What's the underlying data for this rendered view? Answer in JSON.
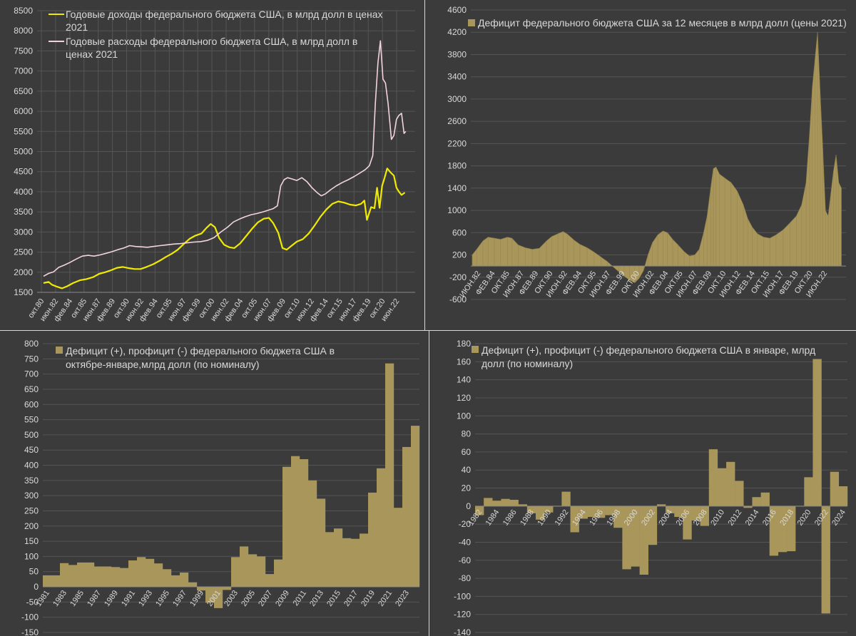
{
  "colors": {
    "revenue": "#f0ea00",
    "spending": "#f3d4dc",
    "bar": "#a9965a",
    "bar_dark": "#8f7e47"
  },
  "chart_data": [
    {
      "id": "p1",
      "type": "line",
      "legend": [
        "Годовые доходы федерального бюджета США, в млрд долл в ценах 2021",
        "Годовые расходы федерального бюджета США, в млрд долл в ценах 2021"
      ],
      "ylim": [
        1500,
        8500
      ],
      "yticks": [
        1500,
        2000,
        2500,
        3000,
        3500,
        4000,
        4500,
        5000,
        5500,
        6000,
        6500,
        7000,
        7500,
        8000,
        8500
      ],
      "xlim": [
        1980.75,
        2024.0
      ],
      "xtick_labels": [
        "окт.80",
        "июн.82",
        "фев.84",
        "окт.85",
        "июн.87",
        "фев.89",
        "окт.90",
        "июн.92",
        "фев.94",
        "окт.95",
        "июн.97",
        "фев.99",
        "окт.00",
        "июн.02",
        "фев.04",
        "окт.05",
        "июн.07",
        "фев.09",
        "окт.10",
        "июн.12",
        "фев.14",
        "окт.15",
        "июн.17",
        "фев.19",
        "окт.20",
        "июн.22"
      ],
      "series": [
        {
          "name": "revenue",
          "x": [
            1981.0,
            1981.6,
            1982.0,
            1982.6,
            1983.2,
            1983.8,
            1984.5,
            1985.3,
            1986.1,
            1986.9,
            1987.6,
            1988.3,
            1989.0,
            1989.7,
            1990.4,
            1991.1,
            1991.8,
            1992.5,
            1993.2,
            1994.0,
            1994.8,
            1995.5,
            1996.2,
            1996.9,
            1997.6,
            1998.3,
            1999.0,
            1999.7,
            2000.3,
            2000.8,
            2001.3,
            2001.8,
            2002.4,
            2003.0,
            2003.6,
            2004.3,
            2005.0,
            2005.7,
            2006.4,
            2007.1,
            2007.7,
            2008.2,
            2008.8,
            2009.3,
            2009.8,
            2010.4,
            2011.0,
            2011.7,
            2012.4,
            2013.1,
            2013.8,
            2014.5,
            2015.2,
            2015.9,
            2016.6,
            2017.3,
            2018.0,
            2018.6,
            2019.0,
            2019.3,
            2019.8,
            2020.2,
            2020.5,
            2020.8,
            2021.1,
            2021.4,
            2021.7,
            2022.1,
            2022.5,
            2022.8,
            2023.1,
            2023.4,
            2023.8
          ],
          "values": [
            1730,
            1760,
            1690,
            1640,
            1600,
            1650,
            1730,
            1800,
            1830,
            1880,
            1960,
            2000,
            2050,
            2110,
            2130,
            2100,
            2080,
            2080,
            2130,
            2200,
            2290,
            2380,
            2460,
            2560,
            2700,
            2830,
            2910,
            2960,
            3100,
            3200,
            3120,
            2850,
            2680,
            2620,
            2600,
            2720,
            2900,
            3080,
            3240,
            3330,
            3350,
            3220,
            2980,
            2600,
            2560,
            2660,
            2760,
            2820,
            2960,
            3160,
            3380,
            3560,
            3700,
            3760,
            3730,
            3680,
            3660,
            3700,
            3780,
            3300,
            3620,
            3590,
            4100,
            3600,
            4150,
            4350,
            4580,
            4480,
            4400,
            4100,
            4000,
            3920,
            3980
          ]
        },
        {
          "name": "spending",
          "x": [
            1981.0,
            1981.6,
            1982.2,
            1982.8,
            1983.5,
            1984.2,
            1984.9,
            1985.6,
            1986.3,
            1987.0,
            1987.7,
            1988.4,
            1989.1,
            1989.8,
            1990.5,
            1991.2,
            1991.9,
            1992.6,
            1993.3,
            1994.0,
            1994.8,
            1995.6,
            1996.4,
            1997.2,
            1998.0,
            1998.8,
            1999.6,
            2000.4,
            2001.2,
            2002.0,
            2002.8,
            2003.5,
            2004.2,
            2004.9,
            2005.6,
            2006.3,
            2007.0,
            2007.6,
            2008.2,
            2008.7,
            2009.1,
            2009.5,
            2009.9,
            2010.4,
            2011.0,
            2011.6,
            2012.2,
            2012.8,
            2013.4,
            2013.9,
            2014.4,
            2015.0,
            2015.7,
            2016.4,
            2017.1,
            2017.8,
            2018.5,
            2019.1,
            2019.6,
            2020.0,
            2020.3,
            2020.6,
            2020.9,
            2021.2,
            2021.5,
            2021.8,
            2022.2,
            2022.5,
            2022.8,
            2023.1,
            2023.4,
            2023.7,
            2023.9
          ],
          "values": [
            1900,
            1970,
            2010,
            2120,
            2180,
            2250,
            2330,
            2400,
            2420,
            2400,
            2430,
            2470,
            2510,
            2560,
            2600,
            2660,
            2640,
            2630,
            2620,
            2640,
            2660,
            2680,
            2700,
            2710,
            2730,
            2750,
            2760,
            2790,
            2860,
            3000,
            3120,
            3250,
            3320,
            3380,
            3430,
            3460,
            3500,
            3540,
            3580,
            3650,
            4150,
            4300,
            4350,
            4320,
            4280,
            4350,
            4250,
            4100,
            3980,
            3900,
            3950,
            4050,
            4150,
            4230,
            4300,
            4380,
            4470,
            4550,
            4650,
            4900,
            6200,
            7200,
            7750,
            6800,
            6700,
            6200,
            5300,
            5400,
            5800,
            5900,
            5950,
            5450,
            5500
          ]
        }
      ]
    },
    {
      "id": "p2",
      "type": "bar",
      "legend": [
        "Дефицит федерального бюджета США за 12 месяцев в млрд долл (цены 2021)"
      ],
      "ylim": [
        -600,
        4600
      ],
      "yticks": [
        -600,
        -200,
        200,
        600,
        1000,
        1400,
        1800,
        2200,
        2600,
        3000,
        3400,
        3800,
        4200,
        4600
      ],
      "xlim": [
        1982.0,
        2024.0
      ],
      "xtick_labels": [
        "ИЮН.82",
        "ФЕВ.84",
        "ОКТ.85",
        "ИЮН.87",
        "ФЕВ.89",
        "ОКТ.90",
        "ИЮН.92",
        "ФЕВ.94",
        "ОКТ.95",
        "ИЮН.97",
        "ФЕВ.99",
        "ОКТ.00",
        "ИЮН.02",
        "ФЕВ.04",
        "ОКТ.05",
        "ИЮН.07",
        "ФЕВ.09",
        "ОКТ.10",
        "ИЮН.12",
        "ФЕВ.14",
        "ОКТ.15",
        "ИЮН.17",
        "ФЕВ.19",
        "ОКТ.20",
        "ИЮН.22"
      ],
      "series": [
        {
          "name": "deficit",
          "x": [
            1982.0,
            1982.5,
            1983.2,
            1983.8,
            1984.5,
            1985.2,
            1986.0,
            1986.5,
            1987.2,
            1988.0,
            1988.8,
            1989.6,
            1990.4,
            1991.0,
            1991.7,
            1992.3,
            1992.8,
            1993.5,
            1994.2,
            1995.0,
            1995.8,
            1996.6,
            1997.3,
            1998.0,
            1998.6,
            1999.2,
            1999.8,
            2000.4,
            2000.9,
            2001.4,
            2001.9,
            2002.4,
            2003.0,
            2003.6,
            2004.1,
            2004.7,
            2005.3,
            2006.0,
            2006.6,
            2007.2,
            2007.7,
            2008.2,
            2008.6,
            2009.0,
            2009.3,
            2009.6,
            2010.0,
            2010.6,
            2011.3,
            2012.0,
            2012.7,
            2013.2,
            2013.7,
            2014.3,
            2015.0,
            2015.7,
            2016.4,
            2017.2,
            2018.0,
            2018.7,
            2019.3,
            2019.8,
            2020.2,
            2020.5,
            2020.8,
            2021.1,
            2021.4,
            2021.7,
            2022.0,
            2022.3,
            2022.6,
            2022.9,
            2023.2,
            2023.5,
            2023.8
          ],
          "values": [
            200,
            300,
            450,
            520,
            500,
            480,
            520,
            500,
            380,
            330,
            300,
            320,
            450,
            530,
            580,
            620,
            570,
            470,
            390,
            330,
            250,
            160,
            80,
            -20,
            -100,
            -180,
            -250,
            -300,
            -220,
            -80,
            200,
            420,
            560,
            630,
            600,
            480,
            380,
            260,
            180,
            200,
            300,
            600,
            900,
            1400,
            1750,
            1780,
            1650,
            1580,
            1500,
            1350,
            1100,
            850,
            700,
            580,
            520,
            500,
            560,
            650,
            780,
            900,
            1100,
            1500,
            2400,
            3200,
            3700,
            4200,
            3100,
            2100,
            1000,
            900,
            1300,
            1700,
            2000,
            1500,
            1400
          ]
        }
      ]
    },
    {
      "id": "p3",
      "type": "bar",
      "legend": [
        "Дефицит (+), профицит (-) федерального бюджета США в октябре-январе,млрд долл (по номиналу)"
      ],
      "ylim": [
        -150,
        800
      ],
      "yticks": [
        -150,
        -100,
        -50,
        0,
        50,
        100,
        150,
        200,
        250,
        300,
        350,
        400,
        450,
        500,
        550,
        600,
        650,
        700,
        750,
        800
      ],
      "categories": [
        "1981",
        "1982",
        "1983",
        "1984",
        "1985",
        "1986",
        "1987",
        "1988",
        "1989",
        "1990",
        "1991",
        "1992",
        "1993",
        "1994",
        "1995",
        "1996",
        "1997",
        "1998",
        "1999",
        "2000",
        "2001",
        "2002",
        "2003",
        "2004",
        "2005",
        "2006",
        "2007",
        "2008",
        "2009",
        "2010",
        "2011",
        "2012",
        "2013",
        "2014",
        "2015",
        "2016",
        "2017",
        "2018",
        "2019",
        "2020",
        "2021",
        "2022",
        "2023",
        "2024"
      ],
      "xtick_labels": [
        "1981",
        "1983",
        "1985",
        "1987",
        "1989",
        "1991",
        "1993",
        "1995",
        "1997",
        "1999",
        "2001",
        "2003",
        "2005",
        "2007",
        "2009",
        "2011",
        "2013",
        "2015",
        "2017",
        "2019",
        "2021",
        "2023"
      ],
      "values": [
        38,
        38,
        78,
        72,
        80,
        80,
        67,
        67,
        65,
        62,
        87,
        98,
        92,
        77,
        58,
        38,
        47,
        15,
        -12,
        -52,
        -70,
        -10,
        98,
        133,
        107,
        100,
        42,
        90,
        395,
        430,
        420,
        350,
        290,
        180,
        192,
        160,
        158,
        175,
        310,
        390,
        735,
        260,
        460,
        530
      ]
    },
    {
      "id": "p4",
      "type": "bar",
      "legend": [
        "Дефицит (+), профицит (-) федерального бюджета США в январе, млрд долл (по номиналу)"
      ],
      "ylim": [
        -140,
        180
      ],
      "yticks": [
        -140,
        -120,
        -100,
        -80,
        -60,
        -40,
        -20,
        0,
        20,
        40,
        60,
        80,
        100,
        120,
        140,
        160,
        180
      ],
      "categories": [
        "1982",
        "1983",
        "1984",
        "1985",
        "1986",
        "1987",
        "1988",
        "1989",
        "1990",
        "1991",
        "1992",
        "1993",
        "1994",
        "1995",
        "1996",
        "1997",
        "1998",
        "1999",
        "2000",
        "2001",
        "2002",
        "2003",
        "2004",
        "2005",
        "2006",
        "2007",
        "2008",
        "2009",
        "2010",
        "2011",
        "2012",
        "2013",
        "2014",
        "2015",
        "2016",
        "2017",
        "2018",
        "2019",
        "2020",
        "2021",
        "2022",
        "2023",
        "2024"
      ],
      "xtick_labels": [
        "1982",
        "1984",
        "1986",
        "1988",
        "1990",
        "1992",
        "1994",
        "1996",
        "1998",
        "2000",
        "2002",
        "2004",
        "2006",
        "2008",
        "2010",
        "2012",
        "2014",
        "2016",
        "2018",
        "2020",
        "2022",
        "2024"
      ],
      "values": [
        -10,
        9,
        6,
        8,
        7,
        2,
        -8,
        -15,
        -7,
        0,
        16,
        -29,
        -14,
        -12,
        -13,
        -10,
        -24,
        -70,
        -67,
        -76,
        -43,
        2,
        -8,
        -12,
        -37,
        -16,
        -22,
        63,
        42,
        49,
        28,
        -2,
        10,
        15,
        -55,
        -51,
        -50,
        0,
        32,
        163,
        -119,
        38,
        22
      ]
    }
  ]
}
